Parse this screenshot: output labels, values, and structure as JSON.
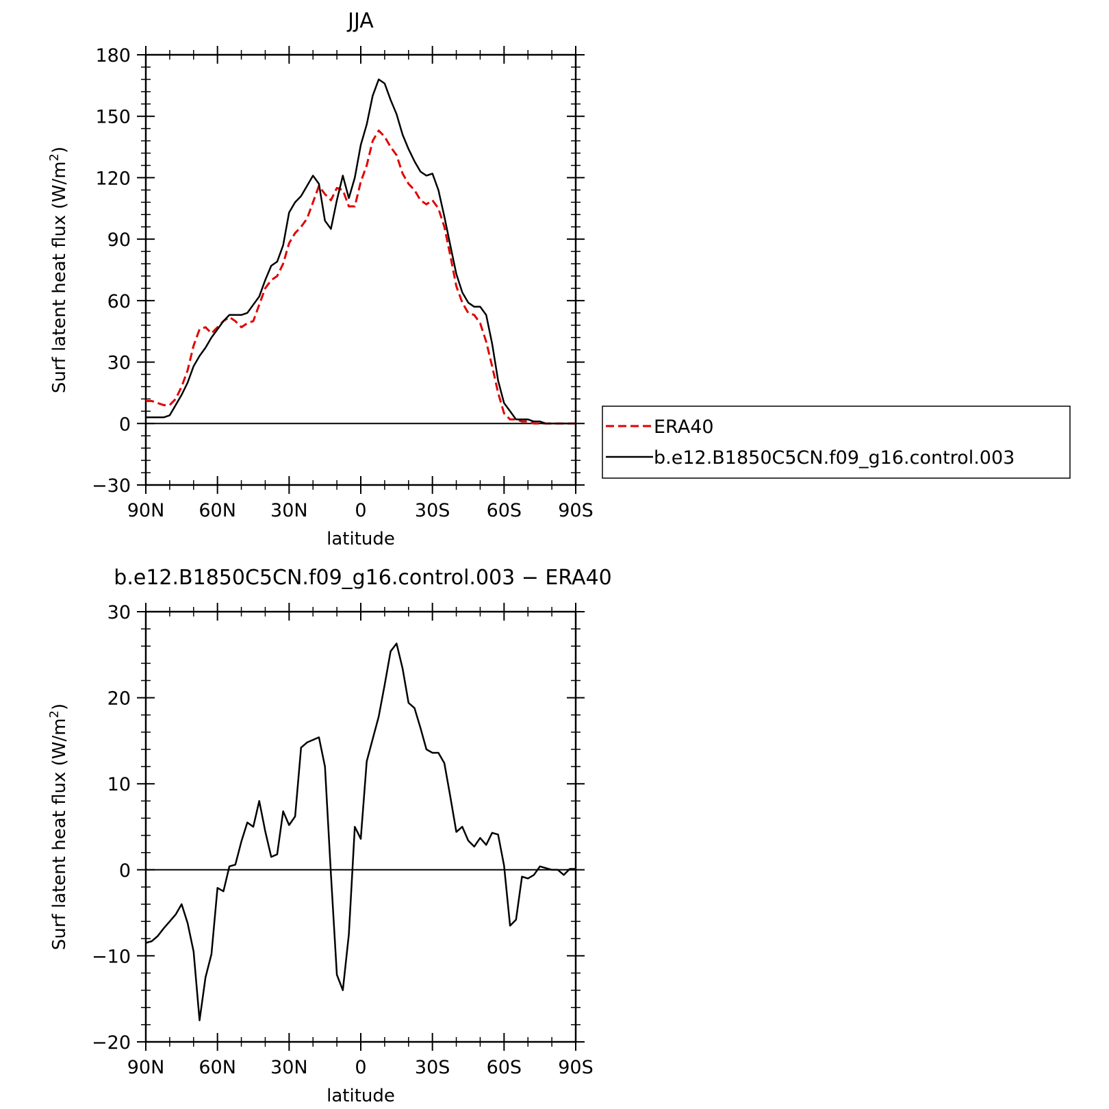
{
  "chart_data": [
    {
      "type": "line",
      "title": "JJA",
      "xlabel": "latitude",
      "ylabel": "Surf latent heat flux (W/m",
      "ylabel_sup": "2",
      "ylabel_close": ")",
      "xlim": [
        90,
        -90
      ],
      "ylim": [
        -30,
        180
      ],
      "x_ticks": [
        {
          "value": 90,
          "label": "90N"
        },
        {
          "value": 60,
          "label": "60N"
        },
        {
          "value": 30,
          "label": "30N"
        },
        {
          "value": 0,
          "label": "0"
        },
        {
          "value": -30,
          "label": "30S"
        },
        {
          "value": -60,
          "label": "60S"
        },
        {
          "value": -90,
          "label": "90S"
        }
      ],
      "y_ticks": [
        {
          "value": 180,
          "label": "180"
        },
        {
          "value": 150,
          "label": "150"
        },
        {
          "value": 120,
          "label": "120"
        },
        {
          "value": 90,
          "label": "90"
        },
        {
          "value": 60,
          "label": "60"
        },
        {
          "value": 30,
          "label": "30"
        },
        {
          "value": 0,
          "label": "0"
        },
        {
          "value": -30,
          "label": "−30"
        }
      ],
      "reference_line": 0,
      "legend": {
        "position": "right",
        "box": true
      },
      "series": [
        {
          "name": "ERA40",
          "color": "#e00000",
          "style": "dashed",
          "x": [
            90,
            87.5,
            85,
            82.5,
            80,
            77.5,
            75,
            72.5,
            70,
            67.5,
            65,
            62.5,
            60,
            57.5,
            55,
            52.5,
            50,
            47.5,
            45,
            42.5,
            40,
            37.5,
            35,
            32.5,
            30,
            27.5,
            25,
            22.5,
            20,
            17.5,
            15,
            12.5,
            10,
            7.5,
            5,
            2.5,
            0,
            -2.5,
            -5,
            -7.5,
            -10,
            -12.5,
            -15,
            -17.5,
            -20,
            -22.5,
            -25,
            -27.5,
            -30,
            -32.5,
            -35,
            -37.5,
            -40,
            -42.5,
            -45,
            -47.5,
            -50,
            -52.5,
            -55,
            -57.5,
            -60,
            -62.5,
            -65,
            -67.5,
            -70,
            -72.5,
            -75,
            -77.5,
            -80,
            -82.5,
            -85,
            -87.5,
            -90
          ],
          "values": [
            11,
            11,
            10,
            9,
            9,
            12,
            18,
            26,
            38,
            46,
            47,
            44,
            47,
            50,
            52,
            50,
            47,
            49,
            50,
            58,
            66,
            70,
            72,
            78,
            88,
            93,
            96,
            100,
            108,
            116,
            112,
            109,
            115,
            114,
            106,
            106,
            118,
            126,
            138,
            143,
            140,
            135,
            131,
            122,
            117,
            114,
            109,
            107,
            109,
            105,
            96,
            82,
            67,
            59,
            54,
            53,
            49,
            40,
            28,
            15,
            5,
            2,
            2,
            1,
            1,
            0,
            0,
            0,
            0,
            0,
            0,
            0,
            0
          ]
        },
        {
          "name": "b.e12.B1850C5CN.f09_g16.control.003",
          "color": "#000000",
          "style": "solid",
          "x": [
            90,
            87.5,
            85,
            82.5,
            80,
            77.5,
            75,
            72.5,
            70,
            67.5,
            65,
            62.5,
            60,
            57.5,
            55,
            52.5,
            50,
            47.5,
            45,
            42.5,
            40,
            37.5,
            35,
            32.5,
            30,
            27.5,
            25,
            22.5,
            20,
            17.5,
            15,
            12.5,
            10,
            7.5,
            5,
            2.5,
            0,
            -2.5,
            -5,
            -7.5,
            -10,
            -12.5,
            -15,
            -17.5,
            -20,
            -22.5,
            -25,
            -27.5,
            -30,
            -32.5,
            -35,
            -37.5,
            -40,
            -42.5,
            -45,
            -47.5,
            -50,
            -52.5,
            -55,
            -57.5,
            -60,
            -62.5,
            -65,
            -67.5,
            -70,
            -72.5,
            -75,
            -77.5,
            -80,
            -82.5,
            -85,
            -87.5,
            -90
          ],
          "values": [
            3,
            3,
            3,
            3,
            4,
            9,
            14,
            20,
            28,
            33,
            37,
            42,
            46,
            50,
            53,
            53,
            53,
            54,
            58,
            62,
            70,
            77,
            79,
            87,
            103,
            108,
            111,
            116,
            121,
            117,
            99,
            95,
            109,
            121,
            110,
            120,
            136,
            146,
            160,
            168,
            166,
            158,
            151,
            141,
            134,
            128,
            123,
            121,
            122,
            114,
            101,
            87,
            73,
            64,
            59,
            57,
            57,
            53,
            39,
            21,
            10,
            6,
            2,
            2,
            2,
            1,
            1,
            0,
            0,
            0,
            0,
            0,
            0
          ]
        }
      ]
    },
    {
      "type": "line",
      "title": "b.e12.B1850C5CN.f09_g16.control.003 − ERA40",
      "xlabel": "latitude",
      "ylabel": "Surf latent heat flux (W/m",
      "ylabel_sup": "2",
      "ylabel_close": ")",
      "xlim": [
        90,
        -90
      ],
      "ylim": [
        -20,
        30
      ],
      "x_ticks": [
        {
          "value": 90,
          "label": "90N"
        },
        {
          "value": 60,
          "label": "60N"
        },
        {
          "value": 30,
          "label": "30N"
        },
        {
          "value": 0,
          "label": "0"
        },
        {
          "value": -30,
          "label": "30S"
        },
        {
          "value": -60,
          "label": "60S"
        },
        {
          "value": -90,
          "label": "90S"
        }
      ],
      "y_ticks": [
        {
          "value": 30,
          "label": "30"
        },
        {
          "value": 20,
          "label": "20"
        },
        {
          "value": 10,
          "label": "10"
        },
        {
          "value": 0,
          "label": "0"
        },
        {
          "value": -10,
          "label": "−10"
        },
        {
          "value": -20,
          "label": "−20"
        }
      ],
      "reference_line": 0,
      "series": [
        {
          "color": "#000000",
          "style": "solid",
          "x": [
            90,
            87.5,
            85,
            82.5,
            80,
            77.5,
            75,
            72.5,
            70,
            67.5,
            65,
            62.5,
            60,
            57.5,
            55,
            52.5,
            50,
            47.5,
            45,
            42.5,
            40,
            37.5,
            35,
            32.5,
            30,
            27.5,
            25,
            22.5,
            20,
            17.5,
            15,
            12.5,
            10,
            7.5,
            5,
            2.5,
            0,
            -2.5,
            -5,
            -7.5,
            -10,
            -12.5,
            -15,
            -17.5,
            -20,
            -22.5,
            -25,
            -27.5,
            -30,
            -32.5,
            -35,
            -37.5,
            -40,
            -42.5,
            -45,
            -47.5,
            -50,
            -52.5,
            -55,
            -57.5,
            -60,
            -62.5,
            -65,
            -67.5,
            -70,
            -72.5,
            -75,
            -77.5,
            -80,
            -82.5,
            -85,
            -87.5,
            -90
          ],
          "values": [
            -8.5,
            -8.3,
            -7.7,
            -6.8,
            -6.0,
            -5.2,
            -4.0,
            -6.2,
            -9.5,
            -17.5,
            -12.5,
            -9.8,
            -2.1,
            -2.5,
            0.4,
            0.6,
            3.3,
            5.5,
            5.0,
            8.0,
            4.5,
            1.5,
            1.8,
            6.8,
            5.2,
            6.2,
            14.2,
            14.8,
            15.1,
            15.4,
            12.0,
            -0.5,
            -12.2,
            -14.0,
            -7.5,
            5.0,
            3.6,
            12.6,
            15.2,
            17.8,
            21.5,
            25.4,
            26.3,
            23.4,
            19.4,
            18.8,
            16.5,
            14.0,
            13.6,
            13.6,
            12.4,
            8.5,
            4.4,
            5.0,
            3.4,
            2.7,
            3.7,
            2.9,
            4.3,
            4.1,
            0.5,
            -6.5,
            -5.8,
            -0.8,
            -1.0,
            -0.6,
            0.4,
            0.2,
            0.0,
            0.0,
            -0.6,
            0.1,
            0.1
          ]
        }
      ]
    }
  ]
}
